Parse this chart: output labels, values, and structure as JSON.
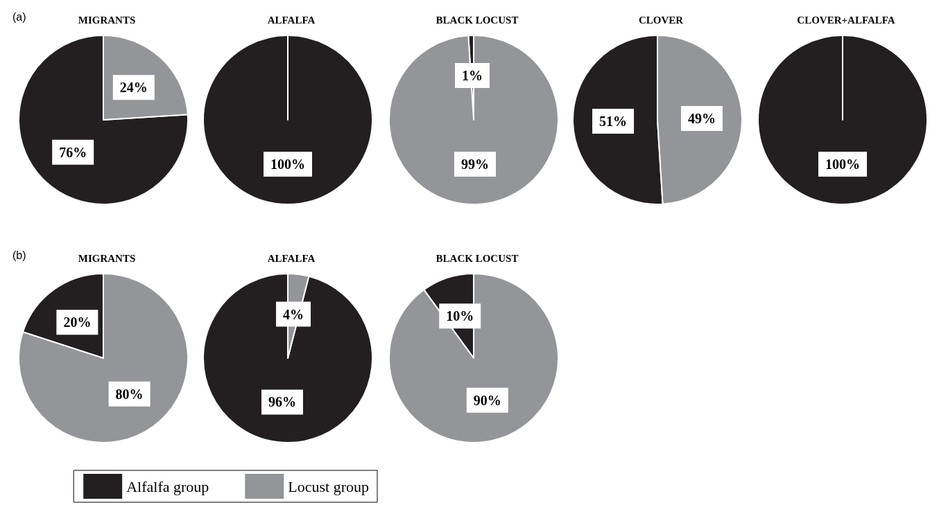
{
  "chart_data": [
    {
      "type": "pie",
      "title": "MIGRANTS",
      "annotations": [
        "(a)"
      ],
      "categories": [
        null,
        null
      ],
      "values": [
        76,
        24
      ],
      "colors": [
        "#231f20",
        "#939598"
      ],
      "value_labels": [
        "76%",
        "24%"
      ]
    },
    {
      "type": "pie",
      "title": "ALFALFA",
      "categories": [
        null,
        null
      ],
      "values": [
        100,
        0
      ],
      "colors": [
        "#231f20",
        "#939598"
      ],
      "value_labels": [
        "100%",
        null
      ]
    },
    {
      "type": "pie",
      "title": "BLACK LOCUST",
      "categories": [
        null,
        null
      ],
      "values": [
        1,
        99
      ],
      "colors": [
        "#231f20",
        "#939598"
      ],
      "value_labels": [
        "1%",
        "99%"
      ]
    },
    {
      "type": "pie",
      "title": "CLOVER",
      "categories": [
        null,
        null
      ],
      "values": [
        51,
        49
      ],
      "colors": [
        "#231f20",
        "#939598"
      ],
      "value_labels": [
        "51%",
        "49%"
      ]
    },
    {
      "type": "pie",
      "title": "CLOVER+ALFALFA",
      "categories": [
        null,
        null
      ],
      "values": [
        100,
        0
      ],
      "colors": [
        "#231f20",
        "#939598"
      ],
      "value_labels": [
        "100%",
        null
      ]
    },
    {
      "type": "pie",
      "title": "MIGRANTS",
      "annotations": [
        "(b)"
      ],
      "categories": [
        "Alfalfa group",
        "Locust group"
      ],
      "values": [
        20,
        80
      ],
      "colors": [
        "#231f20",
        "#939598"
      ],
      "value_labels": [
        "20%",
        "80%"
      ],
      "legend": "bottom right"
    },
    {
      "type": "pie",
      "title": "ALFALFA",
      "categories": [
        null,
        null
      ],
      "values": [
        96,
        4
      ],
      "colors": [
        "#231f20",
        "#939598"
      ],
      "value_labels": [
        "96%",
        "4%"
      ]
    },
    {
      "type": "pie",
      "title": "BLACK LOCUST",
      "categories": [
        null,
        null
      ],
      "values": [
        10,
        90
      ],
      "colors": [
        "#231f20",
        "#939598"
      ],
      "value_labels": [
        "10%",
        "90%"
      ]
    }
  ]
}
